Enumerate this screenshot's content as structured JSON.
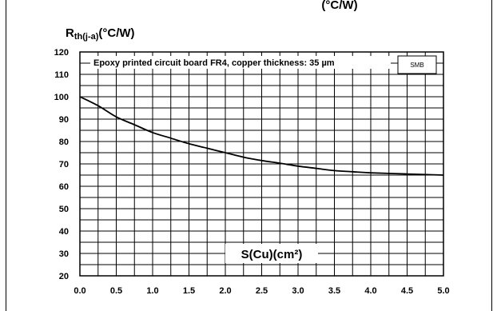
{
  "chart_data": {
    "type": "line",
    "top_text": "(°C/W)",
    "y_label": {
      "main": "R",
      "sub": "th(j-a)",
      "unit": "(°C/W)"
    },
    "x_label": "S(Cu)(cm²)",
    "annotation": "Epoxy printed circuit board FR4, copper thickness: 35 µm",
    "badge": "SMB",
    "xlim": [
      0,
      5
    ],
    "ylim": [
      20,
      120
    ],
    "x_ticks": [
      "0.0",
      "0.5",
      "1.0",
      "1.5",
      "2.0",
      "2.5",
      "3.0",
      "3.5",
      "4.0",
      "4.5",
      "5.0"
    ],
    "y_ticks": [
      "20",
      "30",
      "40",
      "50",
      "60",
      "70",
      "80",
      "90",
      "100",
      "110",
      "120"
    ],
    "grid": true,
    "series": [
      {
        "points": [
          [
            0.0,
            100
          ],
          [
            0.25,
            96
          ],
          [
            0.5,
            91
          ],
          [
            0.75,
            87.5
          ],
          [
            1.0,
            84
          ],
          [
            1.25,
            81.5
          ],
          [
            1.5,
            79
          ],
          [
            1.75,
            77
          ],
          [
            2.0,
            75
          ],
          [
            2.25,
            73
          ],
          [
            2.5,
            71.5
          ],
          [
            2.75,
            70.3
          ],
          [
            3.0,
            69
          ],
          [
            3.25,
            68
          ],
          [
            3.5,
            67
          ],
          [
            3.75,
            66.5
          ],
          [
            4.0,
            66
          ],
          [
            4.5,
            65.5
          ],
          [
            5.0,
            65
          ]
        ]
      }
    ]
  }
}
